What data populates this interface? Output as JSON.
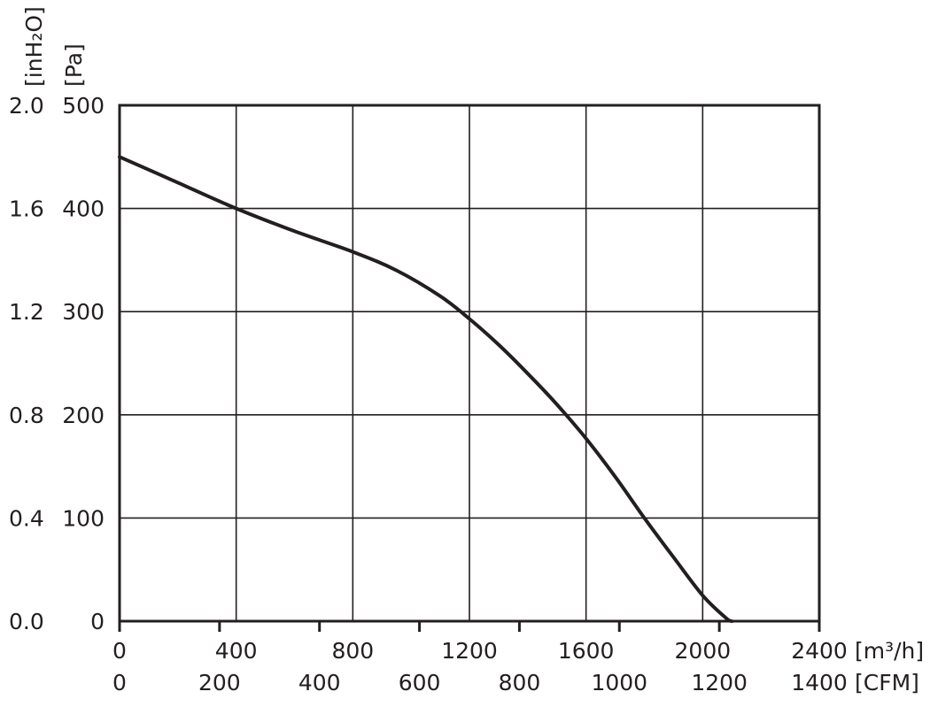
{
  "chart_data": {
    "type": "line",
    "title": "",
    "x_axis_primary": {
      "unit": "[m³/h]",
      "range": [
        0,
        2400
      ],
      "ticks": [
        "0",
        "400",
        "800",
        "1200",
        "1600",
        "2000",
        "2400"
      ]
    },
    "x_axis_secondary": {
      "unit": "[CFM]",
      "range": [
        0,
        1400
      ],
      "ticks": [
        "0",
        "200",
        "400",
        "600",
        "800",
        "1000",
        "1200",
        "1400"
      ]
    },
    "y_axis_primary": {
      "unit": "[Pa]",
      "range": [
        0,
        500
      ],
      "ticks": [
        "0",
        "100",
        "200",
        "300",
        "400",
        "500"
      ]
    },
    "y_axis_secondary": {
      "unit": "[inH₂O]",
      "range": [
        0,
        2.0
      ],
      "ticks": [
        "0.0",
        "0.4",
        "0.8",
        "1.2",
        "1.6",
        "2.0"
      ]
    },
    "grid": true,
    "series": [
      {
        "x": [
          0,
          200,
          400,
          600,
          800,
          950,
          1100,
          1200,
          1300,
          1400,
          1500,
          1600,
          1700,
          1800,
          1900,
          2000,
          2080,
          2100
        ],
        "y": [
          450,
          425,
          400,
          378,
          358,
          340,
          315,
          293,
          268,
          240,
          210,
          177,
          140,
          100,
          62,
          25,
          3,
          0
        ]
      }
    ],
    "colors": {
      "line": "#231f20",
      "grid": "#231f20",
      "text": "#231f20"
    }
  }
}
